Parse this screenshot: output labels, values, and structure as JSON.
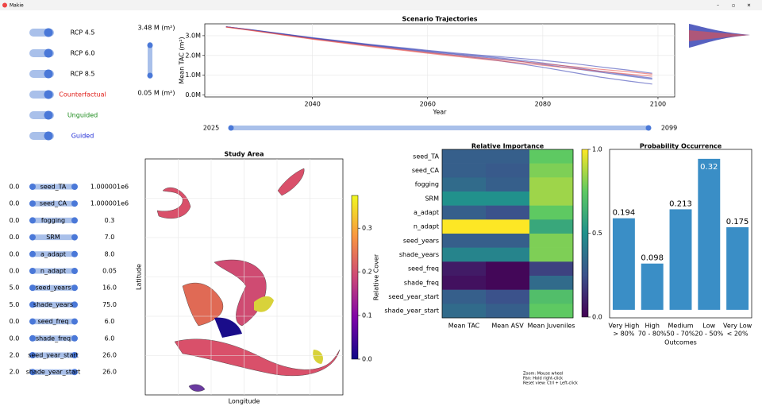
{
  "window": {
    "title": "Makie"
  },
  "toggles": [
    {
      "label": "RCP 4.5",
      "color": "#000000"
    },
    {
      "label": "RCP 6.0",
      "color": "#000000"
    },
    {
      "label": "RCP 8.5",
      "color": "#000000"
    },
    {
      "label": "Counterfactual",
      "color": "#e0201b"
    },
    {
      "label": "Unguided",
      "color": "#1a8a1a"
    },
    {
      "label": "Guided",
      "color": "#1f2bd6"
    }
  ],
  "area_slider": {
    "max_label": "3.48 M (m²)",
    "min_label": "0.05 M (m²)"
  },
  "year_slider": {
    "min_label": "2025",
    "max_label": "2099"
  },
  "parameters": [
    {
      "low": "0.0",
      "name": "seed_TA",
      "high": "1.000001e6"
    },
    {
      "low": "0.0",
      "name": "seed_CA",
      "high": "1.000001e6"
    },
    {
      "low": "0.0",
      "name": "fogging",
      "high": "0.3"
    },
    {
      "low": "0.0",
      "name": "SRM",
      "high": "7.0"
    },
    {
      "low": "0.0",
      "name": "a_adapt",
      "high": "8.0"
    },
    {
      "low": "0.0",
      "name": "n_adapt",
      "high": "0.05"
    },
    {
      "low": "5.0",
      "name": "seed_years",
      "high": "16.0"
    },
    {
      "low": "5.0",
      "name": "shade_years",
      "high": "75.0"
    },
    {
      "low": "0.0",
      "name": "seed_freq",
      "high": "6.0"
    },
    {
      "low": "0.0",
      "name": "shade_freq",
      "high": "6.0"
    },
    {
      "low": "2.0",
      "name": "seed_year_start",
      "high": "26.0"
    },
    {
      "low": "2.0",
      "name": "shade_year_start",
      "high": "26.0"
    }
  ],
  "help": [
    "Zoom: Mouse wheel",
    "Pan: Hold right-click",
    "Reset view: Ctrl + Left-click"
  ],
  "chart_data": [
    {
      "type": "line",
      "title": "Scenario Trajectories",
      "x_label": "Year",
      "y_label": "Mean TAC (m²)",
      "x": [
        2025,
        2030,
        2035,
        2040,
        2045,
        2050,
        2055,
        2060,
        2065,
        2070,
        2075,
        2080,
        2085,
        2090,
        2095,
        2099
      ],
      "series": [
        {
          "color": "#3a45b5",
          "values": [
            3450000,
            3270000,
            3070000,
            2870000,
            2700000,
            2520000,
            2360000,
            2200000,
            2050000,
            1900000,
            1750000,
            1550000,
            1350000,
            1150000,
            950000,
            800000
          ]
        },
        {
          "color": "#3a45b5",
          "values": [
            3450000,
            3260000,
            3060000,
            2860000,
            2680000,
            2500000,
            2330000,
            2160000,
            2000000,
            1830000,
            1620000,
            1400000,
            1150000,
            900000,
            700000,
            550000
          ]
        },
        {
          "color": "#3a45b5",
          "values": [
            3450000,
            3280000,
            3090000,
            2900000,
            2730000,
            2560000,
            2410000,
            2260000,
            2120000,
            1990000,
            1880000,
            1750000,
            1600000,
            1420000,
            1250000,
            1100000
          ]
        },
        {
          "color": "#3a45b5",
          "values": [
            3450000,
            3270000,
            3080000,
            2880000,
            2710000,
            2540000,
            2380000,
            2230000,
            2080000,
            1950000,
            1800000,
            1620000,
            1420000,
            1200000,
            1000000,
            850000
          ]
        },
        {
          "color": "#e8504a",
          "values": [
            3440000,
            3250000,
            3040000,
            2840000,
            2660000,
            2480000,
            2310000,
            2150000,
            2000000,
            1860000,
            1720000,
            1580000,
            1440000,
            1300000,
            1170000,
            1050000
          ]
        },
        {
          "color": "#e8504a",
          "values": [
            3440000,
            3240000,
            3030000,
            2820000,
            2640000,
            2450000,
            2280000,
            2110000,
            1950000,
            1800000,
            1650000,
            1500000,
            1350000,
            1200000,
            1050000,
            950000
          ]
        }
      ],
      "xlim": [
        2021.3,
        2102.9
      ],
      "xticks": [
        2040,
        2060,
        2080,
        2100
      ],
      "ylim": [
        -100000,
        3600000
      ],
      "yticks": [
        {
          "value": 0,
          "label": "0.0M"
        },
        {
          "value": 1000000,
          "label": "1.0M"
        },
        {
          "value": 2000000,
          "label": "2.0M"
        },
        {
          "value": 3000000,
          "label": "3.0M"
        }
      ],
      "grid": true
    },
    {
      "type": "map",
      "title": "Study Area",
      "x_label": "Longitude",
      "y_label": "Latitude",
      "colorbar": {
        "label": "Relative Cover",
        "colormap": "plasma",
        "lim": [
          0,
          0.375
        ],
        "ticks": [
          0.0,
          0.1,
          0.2,
          0.3
        ]
      }
    },
    {
      "type": "heatmap",
      "title": "Relative Importance",
      "rows": [
        "seed_TA",
        "seed_CA",
        "fogging",
        "SRM",
        "a_adapt",
        "n_adapt",
        "seed_years",
        "shade_years",
        "seed_freq",
        "shade_freq",
        "seed_year_start",
        "shade_year_start"
      ],
      "columns": [
        "Mean TAC",
        "Mean ASV",
        "Mean Juveniles"
      ],
      "values": [
        [
          0.3,
          0.3,
          0.75
        ],
        [
          0.3,
          0.28,
          0.8
        ],
        [
          0.35,
          0.3,
          0.85
        ],
        [
          0.5,
          0.5,
          0.85
        ],
        [
          0.3,
          0.25,
          0.75
        ],
        [
          1.0,
          1.0,
          0.6
        ],
        [
          0.3,
          0.3,
          0.8
        ],
        [
          0.45,
          0.45,
          0.8
        ],
        [
          0.08,
          0.02,
          0.2
        ],
        [
          0.05,
          0.02,
          0.35
        ],
        [
          0.3,
          0.25,
          0.7
        ],
        [
          0.35,
          0.3,
          0.75
        ]
      ],
      "colorbar": {
        "colormap": "viridis",
        "lim": [
          0,
          1
        ],
        "ticks": [
          0.0,
          0.5,
          1.0
        ]
      }
    },
    {
      "type": "bar",
      "title": "Probability Occurrence",
      "x_label": "Outcomes",
      "categories": [
        "Very High",
        "High",
        "Medium",
        "Low",
        "Very Low"
      ],
      "category_ranges": [
        "> 80%",
        "70 - 80%",
        "50 - 70%",
        "20 - 50%",
        "< 20%"
      ],
      "values": [
        0.194,
        0.098,
        0.213,
        0.32,
        0.175
      ],
      "color": "#3a8ec6",
      "ylim": [
        -0.017,
        0.34
      ]
    }
  ]
}
